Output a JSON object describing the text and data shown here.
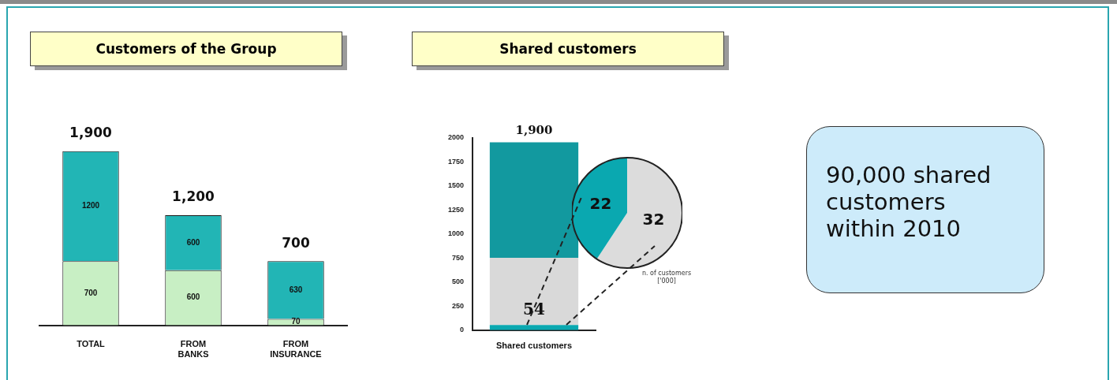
{
  "chart_data": [
    {
      "type": "bar",
      "title": "Customers of the Group",
      "categories": [
        "TOTAL",
        "FROM BANKS",
        "FROM INSURANCE"
      ],
      "stacked": true,
      "series": [
        {
          "color": "#c8efc4",
          "values": [
            700,
            600,
            70
          ]
        },
        {
          "color": "#22b5b5",
          "values": [
            1200,
            600,
            630
          ]
        }
      ],
      "data_labels": true,
      "totals": [
        "1,900",
        "1,200",
        "700"
      ],
      "tick_labels": "x",
      "grid": false,
      "legend": false
    },
    {
      "type": "bar",
      "title": "Shared customers",
      "categories": [
        "Shared customers"
      ],
      "stacked": true,
      "series": [
        {
          "color": "#0aa8b0",
          "values": [
            54
          ],
          "value_labels": [
            "54"
          ]
        },
        {
          "color": "#d9d9d9",
          "values": [
            700
          ]
        },
        {
          "color": "#12999f",
          "values": [
            1200
          ]
        }
      ],
      "ylim": [
        0,
        2000
      ],
      "yticks": [
        0,
        250,
        500,
        750,
        1000,
        1250,
        1500,
        1750,
        2000
      ],
      "annotations": [
        "1,900",
        "n. of customers ['000]"
      ],
      "grid": false,
      "legend": false
    },
    {
      "type": "pie",
      "categories": [
        null,
        null
      ],
      "values": [
        32,
        22
      ],
      "colors": [
        "#dcdcdc",
        "#0aa8b0"
      ],
      "data_labels": true,
      "legend": false
    },
    {
      "type": "other",
      "annotations": [
        "90,000 shared customers within 2010"
      ]
    }
  ]
}
